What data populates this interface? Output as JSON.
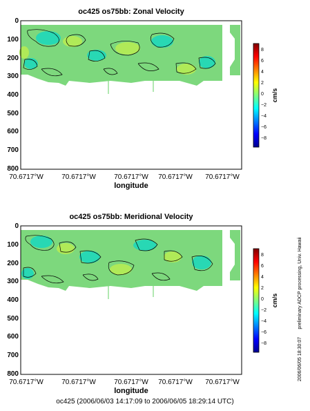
{
  "footer": "oc425 (2006/06/03 14:17:09 to 2006/06/05 18:29:14 UTC)",
  "side_note": "preliminary ADCP processing, Univ. Hawaii",
  "side_timestamp": "2006/06/05 18:30:07",
  "colors": {
    "background_fill": "#7dd87d",
    "low_patch": "#28d8b4",
    "high_patch": "#b0ea58",
    "contour": "#000000"
  },
  "colorbar": {
    "label": "cm/s",
    "ticks": [
      "8",
      "6",
      "4",
      "2",
      "0",
      "−2",
      "−4",
      "−6",
      "−8"
    ],
    "range": [
      -9,
      9
    ],
    "stops": [
      "#00008f",
      "#0000ff",
      "#0080ff",
      "#00ffff",
      "#80ff80",
      "#ffff00",
      "#ff8000",
      "#ff0000",
      "#800000"
    ]
  },
  "chart_data": [
    {
      "type": "heatmap",
      "title": "oc425 os75bb: Zonal Velocity",
      "xlabel": "longitude",
      "x_ticks": [
        "70.6717°W",
        "70.6717°W",
        "70.6717°W",
        "70.6717°W",
        "70.6717°W"
      ],
      "y_ticks": [
        "0",
        "100",
        "200",
        "300",
        "400",
        "500",
        "600",
        "700",
        "800"
      ],
      "ylim": [
        800,
        0
      ],
      "data_bottom_depth": 300,
      "units": "cm/s",
      "value_range": [
        -2,
        2
      ]
    },
    {
      "type": "heatmap",
      "title": "oc425 os75bb: Meridional Velocity",
      "xlabel": "longitude",
      "x_ticks": [
        "70.6717°W",
        "70.6717°W",
        "70.6717°W",
        "70.6717°W",
        "70.6717°W"
      ],
      "y_ticks": [
        "0",
        "100",
        "200",
        "300",
        "400",
        "500",
        "600",
        "700",
        "800"
      ],
      "ylim": [
        800,
        0
      ],
      "data_bottom_depth": 300,
      "units": "cm/s",
      "value_range": [
        -2,
        2
      ]
    }
  ]
}
